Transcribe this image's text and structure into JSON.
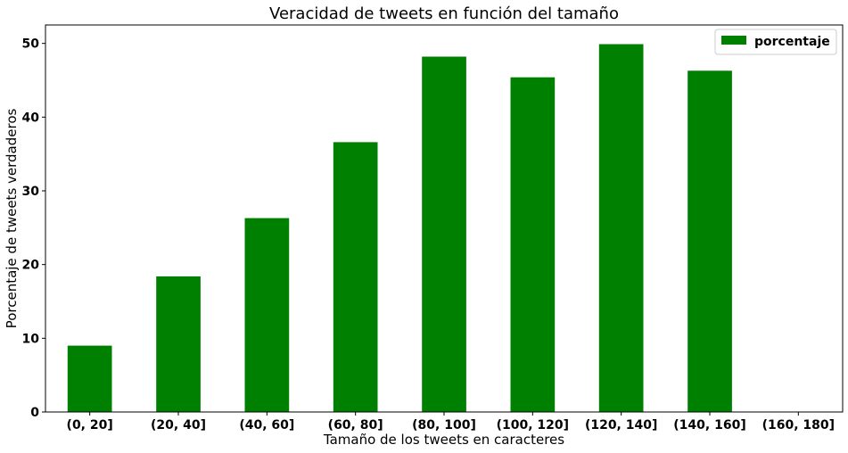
{
  "chart_data": {
    "type": "bar",
    "title": "Veracidad de tweets en función del tamaño",
    "xlabel": "Tamaño de los tweets en caracteres",
    "ylabel": "Porcentaje de tweets verdaderos",
    "categories": [
      "(0, 20]",
      "(20, 40]",
      "(40, 60]",
      "(60, 80]",
      "(80, 100]",
      "(100, 120]",
      "(120, 140]",
      "(140, 160]",
      "(160, 180]"
    ],
    "series": [
      {
        "name": "porcentaje",
        "values": [
          9.0,
          18.4,
          26.3,
          36.6,
          48.2,
          45.4,
          49.9,
          46.3,
          0
        ]
      }
    ],
    "ylim": [
      0,
      52.5
    ],
    "yticks": [
      0,
      10,
      20,
      30,
      40,
      50
    ],
    "grid": false,
    "legend_position": "top-right",
    "bar_color": "#008000"
  }
}
